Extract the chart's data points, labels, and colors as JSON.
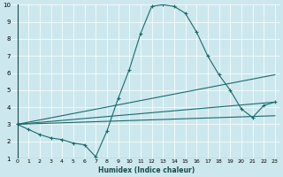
{
  "xlabel": "Humidex (Indice chaleur)",
  "xlim": [
    -0.5,
    23.5
  ],
  "ylim": [
    1,
    10
  ],
  "xticks": [
    0,
    1,
    2,
    3,
    4,
    5,
    6,
    7,
    8,
    9,
    10,
    11,
    12,
    13,
    14,
    15,
    16,
    17,
    18,
    19,
    20,
    21,
    22,
    23
  ],
  "yticks": [
    1,
    2,
    3,
    4,
    5,
    6,
    7,
    8,
    9,
    10
  ],
  "bg_color": "#cce8ee",
  "grid_color": "#b0d4dc",
  "line_color": "#1a6b6b",
  "lines": [
    {
      "x": [
        0,
        1,
        2,
        3,
        4,
        5,
        6,
        7,
        8,
        9,
        10,
        11,
        12,
        13,
        14,
        15,
        16,
        17,
        18,
        19,
        20,
        21,
        22,
        23
      ],
      "y": [
        3.0,
        2.7,
        2.4,
        2.2,
        2.1,
        1.9,
        1.8,
        1.1,
        2.6,
        4.5,
        6.2,
        8.3,
        9.9,
        10.0,
        9.9,
        9.5,
        8.4,
        7.0,
        5.9,
        5.0,
        3.9,
        3.4,
        4.1,
        4.3
      ],
      "marker": true
    },
    {
      "x": [
        0,
        23
      ],
      "y": [
        3.0,
        5.9
      ],
      "marker": false
    },
    {
      "x": [
        0,
        23
      ],
      "y": [
        3.0,
        4.3
      ],
      "marker": false
    },
    {
      "x": [
        0,
        23
      ],
      "y": [
        3.0,
        3.5
      ],
      "marker": false
    }
  ]
}
